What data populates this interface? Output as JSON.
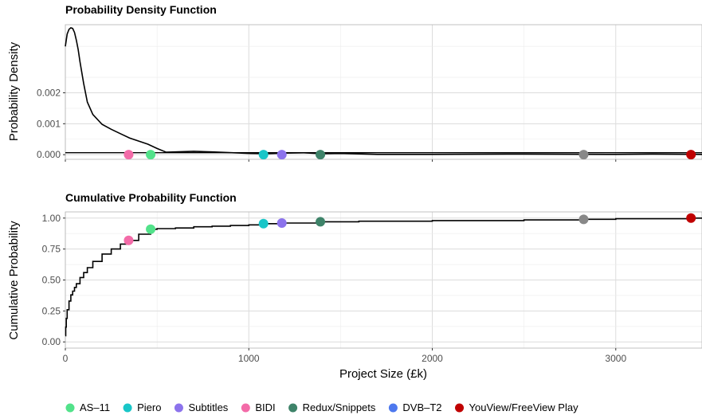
{
  "chart_data": [
    {
      "type": "line",
      "title": "Probability Density Function",
      "xlabel": "",
      "ylabel": "Probability Density",
      "xlim": [
        0,
        3470
      ],
      "ylim": [
        -0.00015,
        0.0042
      ],
      "xticks": [
        "0",
        "1000",
        "2000",
        "3000"
      ],
      "yticks": [
        "0.000",
        "0.001",
        "0.002"
      ],
      "ytick_values": [
        0,
        0.001,
        0.002
      ],
      "x": [
        0,
        10,
        20,
        30,
        40,
        50,
        60,
        70,
        80,
        100,
        120,
        150,
        200,
        250,
        300,
        350,
        400,
        450,
        500,
        550,
        600,
        700,
        800,
        1000,
        1100,
        1200,
        1300,
        1400,
        1500,
        1700,
        2000,
        2500,
        3000,
        3200,
        3470
      ],
      "y": [
        0.0035,
        0.0039,
        0.00405,
        0.0041,
        0.00408,
        0.00395,
        0.0037,
        0.0034,
        0.003,
        0.0023,
        0.0017,
        0.0013,
        0.00098,
        0.00082,
        0.00068,
        0.00054,
        0.00044,
        0.00034,
        0.0002,
        8e-05,
        9e-05,
        0.00011,
        9e-05,
        4e-05,
        3e-05,
        5e-05,
        6e-05,
        3e-05,
        4e-05,
        1e-05,
        1e-05,
        2e-05,
        1e-05,
        2e-05,
        1e-05
      ],
      "points": [
        {
          "name": "AS-11",
          "x": 465,
          "y": 0
        },
        {
          "name": "Piero",
          "x": 1080,
          "y": 0
        },
        {
          "name": "Subtitles",
          "x": 1180,
          "y": 0
        },
        {
          "name": "BIDI",
          "x": 345,
          "y": 0
        },
        {
          "name": "Redux/Snippets",
          "x": 1390,
          "y": 0
        },
        {
          "name": "DVB–T2",
          "x": 2825,
          "y": 0
        },
        {
          "name": "YouView/FreeView Play",
          "x": 3410,
          "y": 0
        }
      ]
    },
    {
      "type": "line",
      "title": "Cumulative Probability Function",
      "xlabel": "Project Size (£k)",
      "ylabel": "Cumulative Probability",
      "xlim": [
        0,
        3470
      ],
      "ylim": [
        -0.05,
        1.05
      ],
      "xticks": [
        "0",
        "1000",
        "2000",
        "3000"
      ],
      "xtick_values": [
        0,
        1000,
        2000,
        3000
      ],
      "yticks": [
        "0.00",
        "0.25",
        "0.50",
        "0.75",
        "1.00"
      ],
      "ytick_values": [
        0,
        0.25,
        0.5,
        0.75,
        1.0
      ],
      "x": [
        0,
        2,
        5,
        10,
        20,
        30,
        40,
        50,
        60,
        80,
        100,
        120,
        150,
        200,
        250,
        300,
        345,
        400,
        465,
        500,
        600,
        700,
        800,
        900,
        1000,
        1080,
        1180,
        1390,
        1600,
        2000,
        2500,
        2825,
        3000,
        3410,
        3470
      ],
      "y": [
        0.05,
        0.12,
        0.19,
        0.26,
        0.33,
        0.38,
        0.41,
        0.44,
        0.47,
        0.52,
        0.56,
        0.6,
        0.65,
        0.71,
        0.75,
        0.79,
        0.82,
        0.87,
        0.91,
        0.915,
        0.92,
        0.93,
        0.935,
        0.94,
        0.945,
        0.955,
        0.96,
        0.97,
        0.975,
        0.98,
        0.985,
        0.99,
        0.995,
        1.0,
        1.0
      ],
      "points": [
        {
          "name": "AS-11",
          "x": 465,
          "y": 0.91
        },
        {
          "name": "Piero",
          "x": 1080,
          "y": 0.955
        },
        {
          "name": "Subtitles",
          "x": 1180,
          "y": 0.96
        },
        {
          "name": "BIDI",
          "x": 345,
          "y": 0.82
        },
        {
          "name": "Redux/Snippets",
          "x": 1390,
          "y": 0.97
        },
        {
          "name": "DVB–T2",
          "x": 2825,
          "y": 0.99
        },
        {
          "name": "YouView/FreeView Play",
          "x": 3410,
          "y": 1.0
        }
      ]
    }
  ],
  "legend": {
    "placement": "bottom",
    "items": [
      {
        "label": "AS–11",
        "color": "#52e28a"
      },
      {
        "label": "Piero",
        "color": "#19c6c8"
      },
      {
        "label": "Subtitles",
        "color": "#8c73ec"
      },
      {
        "label": "BIDI",
        "color": "#f36ba8"
      },
      {
        "label": "Redux/Snippets",
        "color": "#3e8369"
      },
      {
        "label": "DVB–T2",
        "color": "#4d78ee"
      },
      {
        "label": "YouView/FreeView Play",
        "color": "#c00000"
      }
    ]
  },
  "colors": {
    "line": "#000000",
    "grid": "#dedede",
    "panel_border": "#b3b3b3"
  }
}
